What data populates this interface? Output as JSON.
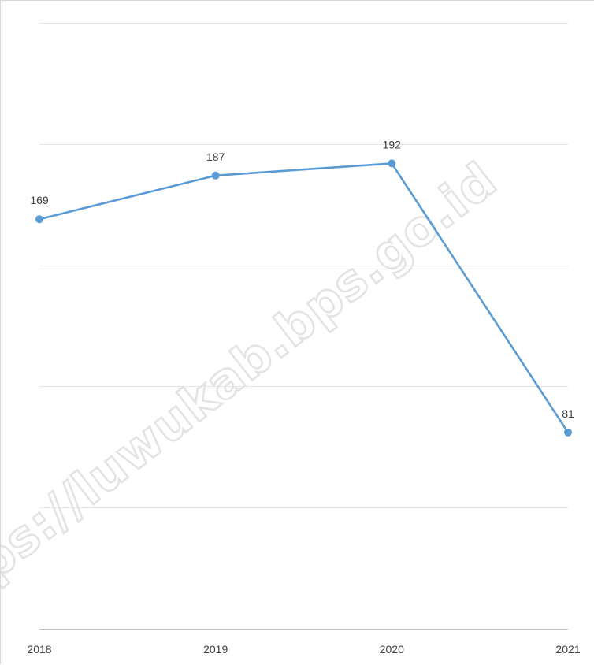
{
  "chart_data": {
    "type": "line",
    "categories": [
      "2018",
      "2019",
      "2020",
      "2021"
    ],
    "series": [
      {
        "values": [
          169,
          187,
          192,
          81
        ],
        "color": "#5b9bd5"
      }
    ],
    "data_labels": [
      "169",
      "187",
      "192",
      "81"
    ],
    "ylim": [
      0,
      250
    ],
    "y_gridline_step": 50,
    "grid": true,
    "y_axis_labels_shown": false,
    "legend": "none"
  },
  "watermark": {
    "text": "https://luwukab.bps.go.id"
  }
}
